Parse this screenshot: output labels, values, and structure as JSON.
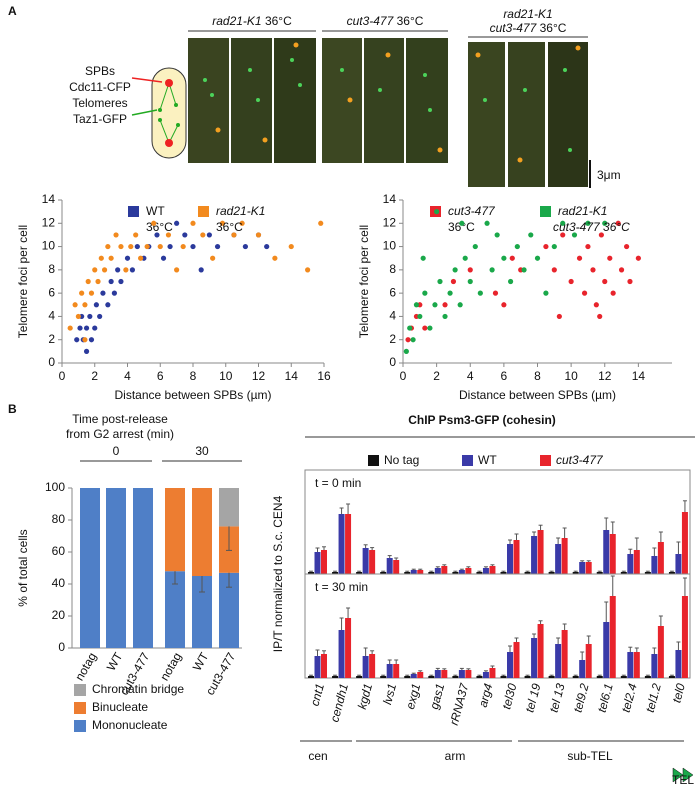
{
  "panel_labels": [
    "A",
    "B"
  ],
  "image_groups": [
    {
      "lines": [
        [
          {
            "italic": "rad21-K1"
          },
          {
            "text": " 36°C"
          }
        ]
      ]
    },
    {
      "lines": [
        [
          {
            "italic": "cut3-477"
          },
          {
            "text": " 36°C"
          }
        ]
      ]
    },
    {
      "lines": [
        [
          {
            "italic": "rad21-K1"
          }
        ],
        [
          {
            "italic": "cut3-477"
          },
          {
            "text": " 36°C"
          }
        ]
      ]
    }
  ],
  "cartoon": {
    "spb": "SPBs",
    "spb_marker": "Cdc11-CFP",
    "telomere": "Telomeres",
    "telomere_marker": "Taz1-GFP"
  },
  "scale_bar": "3μm",
  "chart_data": [
    {
      "type": "scatter",
      "ylabel": "Telomere foci per cell",
      "xlabel": "Distance between SPBs (µm)",
      "xlim": [
        0,
        16
      ],
      "xticks": [
        0,
        2,
        4,
        6,
        8,
        10,
        12,
        14,
        16
      ],
      "ylim": [
        0,
        14
      ],
      "yticks": [
        0,
        2,
        4,
        6,
        8,
        10,
        12,
        14
      ],
      "series": [
        {
          "name": "WT",
          "name_line2": "36°C",
          "color": "#2b3a9c",
          "x": [
            0.9,
            1.1,
            1.2,
            1.3,
            1.5,
            1.5,
            1.7,
            1.8,
            2,
            2.1,
            2.3,
            2.5,
            2.8,
            3,
            3.2,
            3.4,
            3.6,
            4,
            4.3,
            4.6,
            5,
            5.3,
            5.8,
            6.2,
            6.6,
            7,
            7.5,
            8,
            8.5,
            9,
            9.5,
            10.5,
            11.2,
            12,
            12.5
          ],
          "values": [
            2,
            3,
            4,
            2,
            1,
            3,
            4,
            2,
            3,
            5,
            4,
            6,
            5,
            7,
            6,
            8,
            7,
            9,
            8,
            10,
            9,
            10,
            11,
            9,
            10,
            12,
            11,
            10,
            8,
            11,
            10,
            11,
            10,
            11,
            10
          ]
        },
        {
          "name": "rad21-K1",
          "name_line2": "36°C",
          "color": "#f28a1e",
          "x": [
            0.5,
            0.8,
            1,
            1.2,
            1.4,
            1.6,
            1.8,
            2,
            2.2,
            2.4,
            2.6,
            2.8,
            3,
            3.3,
            3.6,
            3.9,
            4.2,
            4.5,
            4.8,
            5.2,
            5.6,
            6,
            6.5,
            7,
            7.4,
            8,
            8.6,
            9.2,
            9.8,
            10.5,
            11,
            12,
            13,
            14,
            15,
            15.8,
            1.4
          ],
          "values": [
            3,
            5,
            4,
            6,
            5,
            7,
            6,
            8,
            7,
            9,
            8,
            10,
            9,
            11,
            10,
            8,
            10,
            11,
            9,
            10,
            12,
            10,
            11,
            8,
            10,
            12,
            11,
            9,
            12,
            11,
            12,
            11,
            9,
            10,
            8,
            12,
            2
          ]
        }
      ]
    },
    {
      "type": "scatter",
      "ylabel": "Telomere foci per cell",
      "xlabel": "Distance between SPBs (µm)",
      "xlim": [
        0,
        16
      ],
      "xticks": [
        0,
        2,
        4,
        6,
        8,
        10,
        12,
        14
      ],
      "ylim": [
        0,
        14
      ],
      "yticks": [
        0,
        2,
        4,
        6,
        8,
        10,
        12,
        14
      ],
      "series": [
        {
          "name": "cut3-477",
          "name_line2": "36°C",
          "color": "#e8242c",
          "x": [
            0.3,
            0.5,
            0.8,
            1,
            1.3,
            2.5,
            3,
            4,
            5.5,
            6,
            6.5,
            7,
            8.5,
            9,
            9.5,
            10,
            10.5,
            10.8,
            11,
            11.3,
            11.5,
            11.8,
            12,
            12.3,
            12.5,
            12.8,
            13,
            13.3,
            13.5,
            14,
            11.7,
            9.3
          ],
          "values": [
            2,
            3,
            4,
            5,
            3,
            5,
            7,
            8,
            6,
            5,
            9,
            8,
            10,
            8,
            11,
            7,
            9,
            6,
            10,
            8,
            5,
            11,
            7,
            9,
            6,
            12,
            8,
            10,
            7,
            9,
            4,
            4
          ]
        },
        {
          "name": "rad21-K1",
          "name_line2": "cut3-477 36°C",
          "color": "#1aa84a",
          "x": [
            0.2,
            0.4,
            0.6,
            0.8,
            1,
            1.3,
            1.6,
            1.9,
            2.2,
            2.5,
            2.8,
            3.1,
            3.4,
            3.7,
            4,
            4.3,
            4.6,
            5,
            5.3,
            5.6,
            6,
            6.4,
            6.8,
            7.2,
            7.6,
            8,
            8.5,
            9,
            9.5,
            10.2,
            11,
            1.2,
            2,
            3.5,
            12
          ],
          "values": [
            1,
            3,
            2,
            5,
            4,
            6,
            3,
            5,
            7,
            4,
            6,
            8,
            5,
            9,
            7,
            10,
            6,
            12,
            8,
            11,
            9,
            7,
            10,
            8,
            11,
            9,
            6,
            10,
            12,
            11,
            12,
            9,
            13,
            12,
            12
          ]
        }
      ]
    },
    {
      "type": "stacked_bar",
      "title": "Time post-release",
      "title_line2": "from G2 arrest (min)",
      "ylabel": "% of total cells",
      "ylim": [
        0,
        100
      ],
      "yticks": [
        0,
        20,
        40,
        60,
        80,
        100
      ],
      "groups": [
        "0",
        "30"
      ],
      "categories": [
        "notag",
        "WT",
        "cut3-477",
        "notag",
        "WT",
        "cut3-477"
      ],
      "series": [
        {
          "name": "Mononucleate",
          "color": "#4f7fc7",
          "values": [
            100,
            100,
            100,
            48,
            45,
            47
          ],
          "errors": [
            0,
            0,
            0,
            8,
            10,
            9
          ]
        },
        {
          "name": "Binucleate",
          "color": "#ed7d31",
          "values": [
            0,
            0,
            0,
            52,
            55,
            29
          ],
          "errors": [
            0,
            0,
            0,
            0,
            0,
            15
          ]
        },
        {
          "name": "Chromatin bridge",
          "color": "#a5a5a5",
          "values": [
            0,
            0,
            0,
            0,
            0,
            24
          ],
          "errors": [
            0,
            0,
            0,
            0,
            0,
            0
          ]
        }
      ]
    },
    {
      "type": "grouped_bar",
      "title": "ChIP Psm3-GFP (cohesin)",
      "ylabel": "IP/T normalized to S.c. CEN4",
      "annotation": "t = 0 min",
      "ylim": [
        0,
        2.6
      ],
      "series": [
        {
          "name": "No tag",
          "color": "#111111",
          "values": [
            0.05,
            0.05,
            0.05,
            0.05,
            0.05,
            0.05,
            0.05,
            0.05,
            0.05,
            0.05,
            0.05,
            0.05,
            0.05,
            0.05,
            0.05,
            0.05
          ],
          "errors": [
            0.02,
            0.02,
            0.02,
            0.02,
            0.02,
            0.02,
            0.02,
            0.02,
            0.02,
            0.02,
            0.02,
            0.02,
            0.02,
            0.02,
            0.02,
            0.02
          ]
        },
        {
          "name": "WT",
          "color": "#3a3aa8",
          "values": [
            0.55,
            1.5,
            0.65,
            0.4,
            0.1,
            0.15,
            0.1,
            0.15,
            0.75,
            0.95,
            0.75,
            0.3,
            1.1,
            0.5,
            0.45,
            0.5
          ],
          "errors": [
            0.1,
            0.15,
            0.08,
            0.06,
            0.02,
            0.03,
            0.02,
            0.03,
            0.1,
            0.1,
            0.15,
            0.03,
            0.3,
            0.12,
            0.2,
            0.3
          ]
        },
        {
          "name": "cut3-477",
          "color": "#e8242c",
          "values": [
            0.6,
            1.5,
            0.6,
            0.35,
            0.1,
            0.2,
            0.15,
            0.2,
            0.85,
            1.1,
            0.9,
            0.3,
            1.0,
            0.6,
            0.8,
            1.55
          ],
          "errors": [
            0.08,
            0.25,
            0.06,
            0.05,
            0.02,
            0.03,
            0.03,
            0.03,
            0.15,
            0.12,
            0.25,
            0.03,
            0.3,
            0.3,
            0.25,
            0.28
          ]
        }
      ]
    },
    {
      "type": "grouped_bar",
      "annotation": "t = 30 min",
      "ylim": [
        0,
        2.6
      ],
      "categories": [
        "cnt1",
        "cendh1",
        "kgd1",
        "lvs1",
        "exg1",
        "gas1",
        "rRNA37",
        "arg4",
        "tel30",
        "tel 19",
        "tel 13",
        "tel9.2",
        "tel6.1",
        "tel2.4",
        "tel1.2",
        "tel0"
      ],
      "series": [
        {
          "color": "#111111",
          "values": [
            0.05,
            0.05,
            0.05,
            0.05,
            0.05,
            0.05,
            0.05,
            0.05,
            0.05,
            0.05,
            0.05,
            0.05,
            0.05,
            0.05,
            0.05,
            0.05
          ],
          "errors": [
            0.02,
            0.02,
            0.02,
            0.02,
            0.02,
            0.02,
            0.02,
            0.02,
            0.02,
            0.02,
            0.02,
            0.02,
            0.02,
            0.02,
            0.02,
            0.02
          ]
        },
        {
          "color": "#3a3aa8",
          "values": [
            0.55,
            1.2,
            0.55,
            0.35,
            0.1,
            0.2,
            0.2,
            0.15,
            0.65,
            1.0,
            0.85,
            0.45,
            1.4,
            0.65,
            0.6,
            0.7
          ],
          "errors": [
            0.15,
            0.3,
            0.2,
            0.1,
            0.02,
            0.04,
            0.04,
            0.03,
            0.15,
            0.1,
            0.15,
            0.2,
            0.5,
            0.12,
            0.15,
            0.2
          ]
        },
        {
          "color": "#e8242c",
          "values": [
            0.6,
            1.5,
            0.6,
            0.35,
            0.15,
            0.2,
            0.2,
            0.25,
            0.9,
            1.35,
            1.2,
            0.85,
            2.05,
            0.65,
            1.3,
            2.05
          ],
          "errors": [
            0.08,
            0.25,
            0.08,
            0.1,
            0.03,
            0.03,
            0.03,
            0.05,
            0.1,
            0.08,
            0.15,
            0.2,
            0.5,
            0.1,
            0.25,
            0.45
          ]
        }
      ]
    }
  ],
  "regions": [
    "cen",
    "arm",
    "sub-TEL",
    "TEL"
  ]
}
